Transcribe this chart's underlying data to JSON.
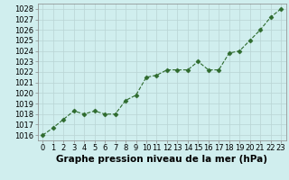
{
  "x": [
    0,
    1,
    2,
    3,
    4,
    5,
    6,
    7,
    8,
    9,
    10,
    11,
    12,
    13,
    14,
    15,
    16,
    17,
    18,
    19,
    20,
    21,
    22,
    23
  ],
  "y": [
    1016.0,
    1016.7,
    1017.5,
    1018.3,
    1018.0,
    1018.3,
    1018.0,
    1018.0,
    1019.3,
    1019.8,
    1021.5,
    1021.7,
    1022.2,
    1022.2,
    1022.2,
    1023.0,
    1022.2,
    1022.2,
    1023.8,
    1024.0,
    1025.0,
    1026.0,
    1027.2,
    1028.0
  ],
  "line_color": "#2d6a2d",
  "marker": "D",
  "marker_size": 2.5,
  "bg_color": "#d0eeee",
  "grid_color": "#b8d4d4",
  "xlabel": "Graphe pression niveau de la mer (hPa)",
  "xlabel_fontsize": 7.5,
  "tick_fontsize": 6,
  "ylim": [
    1015.5,
    1028.5
  ],
  "yticks": [
    1016,
    1017,
    1018,
    1019,
    1020,
    1021,
    1022,
    1023,
    1024,
    1025,
    1026,
    1027,
    1028
  ],
  "xlim": [
    -0.5,
    23.5
  ],
  "xticks": [
    0,
    1,
    2,
    3,
    4,
    5,
    6,
    7,
    8,
    9,
    10,
    11,
    12,
    13,
    14,
    15,
    16,
    17,
    18,
    19,
    20,
    21,
    22,
    23
  ]
}
